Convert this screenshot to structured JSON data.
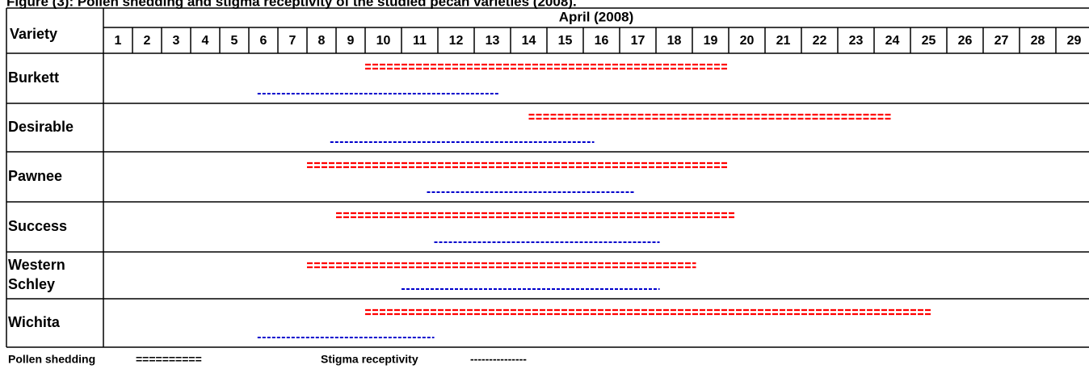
{
  "header": {
    "title": "Figure (3): Pollen shedding and stigma receptivity of the studied pecan varieties (2008)."
  },
  "table": {
    "variety_heading": "Variety",
    "month_heading": "April (2008)",
    "days": [
      1,
      2,
      3,
      4,
      5,
      6,
      7,
      8,
      9,
      10,
      11,
      12,
      13,
      14,
      15,
      16,
      17,
      18,
      19,
      20,
      21,
      22,
      23,
      24,
      25,
      26,
      27,
      28,
      29
    ],
    "rows": [
      {
        "variety": [
          "Burkett"
        ],
        "pollen": [
          10,
          20
        ],
        "stigma": [
          6.3,
          13.7
        ]
      },
      {
        "variety": [
          "Desirable"
        ],
        "pollen": [
          14.5,
          24.5
        ],
        "stigma": [
          8.8,
          16.3
        ]
      },
      {
        "variety": [
          "Pawnee"
        ],
        "pollen": [
          8,
          20
        ],
        "stigma": [
          11.7,
          17.4
        ]
      },
      {
        "variety": [
          "Success"
        ],
        "pollen": [
          9,
          20.2
        ],
        "stigma": [
          11.9,
          18.1
        ]
      },
      {
        "variety": [
          "Western",
          "Schley"
        ],
        "pollen": [
          8,
          19.1
        ],
        "stigma": [
          11,
          18.1
        ]
      },
      {
        "variety": [
          "Wichita"
        ],
        "pollen": [
          10,
          25.6
        ],
        "stigma": [
          6.3,
          11.9
        ]
      }
    ]
  },
  "legend": {
    "pollen_label": "Pollen shedding",
    "pollen_symbol": "==========",
    "pollen_color": "#ff0000",
    "stigma_label": "Stigma receptivity",
    "stigma_symbol": "---------------",
    "stigma_color": "#0000cc"
  }
}
